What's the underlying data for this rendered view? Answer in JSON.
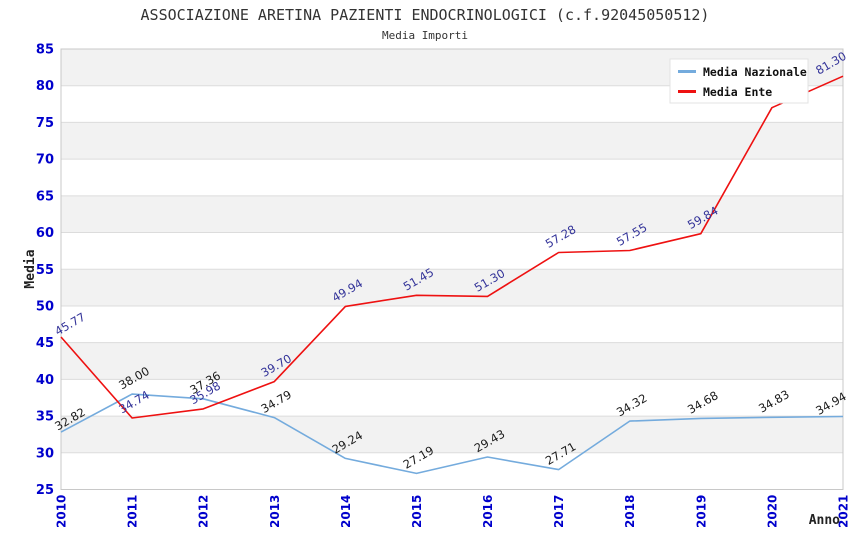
{
  "header": {
    "title": "ASSOCIAZIONE ARETINA PAZIENTI ENDOCRINOLOGICI (c.f.92045050512)",
    "subtitle": "Media Importi"
  },
  "chart_data": {
    "type": "line",
    "x": [
      2010,
      2011,
      2012,
      2013,
      2014,
      2015,
      2016,
      2017,
      2018,
      2019,
      2020,
      2021
    ],
    "xlabel": "Anno",
    "ylabel": "Media",
    "ylim": [
      25,
      85
    ],
    "ytick_step": 5,
    "grid": "horizontal-bands",
    "legend_position": "top-right",
    "legend_items": [
      "Media Nazionale",
      "Media Ente"
    ],
    "series": [
      {
        "name": "Media Nazionale",
        "color": "#74abdd",
        "label_color": "#1a1a1a",
        "values": [
          32.82,
          38.0,
          37.36,
          34.79,
          29.24,
          27.19,
          29.43,
          27.71,
          34.32,
          34.68,
          34.83,
          34.94
        ]
      },
      {
        "name": "Media Ente",
        "color": "#ee1111",
        "label_color": "#333399",
        "values": [
          45.77,
          34.74,
          35.98,
          39.7,
          49.94,
          51.45,
          51.3,
          57.28,
          57.55,
          59.84,
          77.0,
          81.3
        ],
        "label_hidden_x": [
          2020
        ]
      }
    ]
  },
  "style_colors": {
    "tick_label": "#0000cc",
    "grid_line": "#dcdcdc",
    "band_fill": "#f2f2f2",
    "plot_border": "#c8c8c8",
    "legend_border": "#e3e3e3",
    "legend_bg": "#ffffff"
  }
}
